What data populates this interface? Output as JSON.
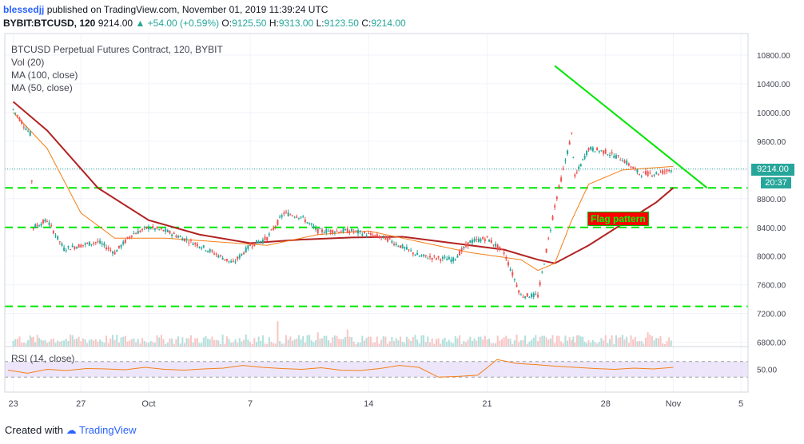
{
  "header": {
    "user": "blessedjj",
    "published": "published on TradingView.com, November 01, 2019 11:39:24 UTC",
    "symbol": "BYBIT:BTCUSD, 120",
    "last": "9214.00",
    "change": "+54.00 (+0.59%)",
    "open_label": "O:",
    "open": "9125.50",
    "high_label": "H:",
    "high": "9313.00",
    "low_label": "L:",
    "low": "9123.50",
    "close_label": "C:",
    "close": "9214.00"
  },
  "legend": {
    "title": "BTCUSD Perpetual Futures Contract, 120, BYBIT",
    "vol": "Vol (20)",
    "ma100": "MA (100, close)",
    "ma50": "MA (50, close)",
    "rsi": "RSI (14, close)"
  },
  "price_badge": {
    "price": "9214.00",
    "countdown": "20:37"
  },
  "annotation": {
    "label": "Flag pattern"
  },
  "footer": {
    "created_with": "Created with",
    "brand": "TradingView"
  },
  "colors": {
    "up": "#26a69a",
    "down": "#ef5350",
    "ma100": "#b22222",
    "ma50": "#f57f17",
    "support": "#00e600",
    "trend": "#00e600",
    "rsi": "#f57f17",
    "rsi_band": "#e1d5f7"
  },
  "chart_data": {
    "type": "line",
    "title": "BTCUSD Perpetual Futures Contract, 120, BYBIT",
    "y_axis": {
      "ticks": [
        10800,
        10400,
        10000,
        9600,
        9200,
        8800,
        8400,
        8000,
        7600,
        7200,
        6800
      ],
      "range": [
        6740,
        11100
      ]
    },
    "x_axis": {
      "ticks": [
        "23",
        "27",
        "Oct",
        "7",
        "14",
        "21",
        "28",
        "Nov",
        "5"
      ]
    },
    "price_series": [
      {
        "date": "2019-09-23",
        "price": 10040
      },
      {
        "date": "2019-09-24",
        "price": 9700
      },
      {
        "date": "2019-09-24",
        "price": 8400
      },
      {
        "date": "2019-09-25",
        "price": 8500
      },
      {
        "date": "2019-09-26",
        "price": 8100
      },
      {
        "date": "2019-09-27",
        "price": 8150
      },
      {
        "date": "2019-09-28",
        "price": 8200
      },
      {
        "date": "2019-09-29",
        "price": 8050
      },
      {
        "date": "2019-09-30",
        "price": 8300
      },
      {
        "date": "2019-10-01",
        "price": 8400
      },
      {
        "date": "2019-10-02",
        "price": 8350
      },
      {
        "date": "2019-10-04",
        "price": 8150
      },
      {
        "date": "2019-10-06",
        "price": 7900
      },
      {
        "date": "2019-10-07",
        "price": 8150
      },
      {
        "date": "2019-10-08",
        "price": 8250
      },
      {
        "date": "2019-10-09",
        "price": 8600
      },
      {
        "date": "2019-10-10",
        "price": 8550
      },
      {
        "date": "2019-10-11",
        "price": 8350
      },
      {
        "date": "2019-10-13",
        "price": 8350
      },
      {
        "date": "2019-10-15",
        "price": 8250
      },
      {
        "date": "2019-10-17",
        "price": 8000
      },
      {
        "date": "2019-10-19",
        "price": 7950
      },
      {
        "date": "2019-10-20",
        "price": 8200
      },
      {
        "date": "2019-10-21",
        "price": 8250
      },
      {
        "date": "2019-10-22",
        "price": 8050
      },
      {
        "date": "2019-10-23",
        "price": 7450
      },
      {
        "date": "2019-10-24",
        "price": 7450
      },
      {
        "date": "2019-10-25",
        "price": 8700
      },
      {
        "date": "2019-10-26",
        "price": 9700
      },
      {
        "date": "2019-10-26",
        "price": 9100
      },
      {
        "date": "2019-10-27",
        "price": 9500
      },
      {
        "date": "2019-10-28",
        "price": 9450
      },
      {
        "date": "2019-10-29",
        "price": 9350
      },
      {
        "date": "2019-10-30",
        "price": 9150
      },
      {
        "date": "2019-10-31",
        "price": 9150
      },
      {
        "date": "2019-11-01",
        "price": 9214
      }
    ],
    "ma100": [
      {
        "date": "2019-09-23",
        "price": 10150
      },
      {
        "date": "2019-09-25",
        "price": 9750
      },
      {
        "date": "2019-09-28",
        "price": 8950
      },
      {
        "date": "2019-10-01",
        "price": 8500
      },
      {
        "date": "2019-10-04",
        "price": 8300
      },
      {
        "date": "2019-10-07",
        "price": 8180
      },
      {
        "date": "2019-10-10",
        "price": 8230
      },
      {
        "date": "2019-10-13",
        "price": 8260
      },
      {
        "date": "2019-10-16",
        "price": 8270
      },
      {
        "date": "2019-10-19",
        "price": 8180
      },
      {
        "date": "2019-10-22",
        "price": 8090
      },
      {
        "date": "2019-10-24",
        "price": 7950
      },
      {
        "date": "2019-10-25",
        "price": 7900
      },
      {
        "date": "2019-10-27",
        "price": 8150
      },
      {
        "date": "2019-10-29",
        "price": 8450
      },
      {
        "date": "2019-10-31",
        "price": 8750
      },
      {
        "date": "2019-11-01",
        "price": 8950
      }
    ],
    "ma50": [
      {
        "date": "2019-09-23",
        "price": 10000
      },
      {
        "date": "2019-09-25",
        "price": 9500
      },
      {
        "date": "2019-09-27",
        "price": 8600
      },
      {
        "date": "2019-09-29",
        "price": 8250
      },
      {
        "date": "2019-10-02",
        "price": 8250
      },
      {
        "date": "2019-10-05",
        "price": 8200
      },
      {
        "date": "2019-10-08",
        "price": 8150
      },
      {
        "date": "2019-10-11",
        "price": 8300
      },
      {
        "date": "2019-10-14",
        "price": 8350
      },
      {
        "date": "2019-10-17",
        "price": 8200
      },
      {
        "date": "2019-10-20",
        "price": 8050
      },
      {
        "date": "2019-10-23",
        "price": 7950
      },
      {
        "date": "2019-10-24",
        "price": 7800
      },
      {
        "date": "2019-10-25",
        "price": 7900
      },
      {
        "date": "2019-10-26",
        "price": 8500
      },
      {
        "date": "2019-10-27",
        "price": 9000
      },
      {
        "date": "2019-10-29",
        "price": 9200
      },
      {
        "date": "2019-11-01",
        "price": 9250
      }
    ],
    "support_levels": [
      8950,
      8400,
      7300
    ],
    "trend_line": [
      {
        "date": "2019-10-25",
        "price": 10650
      },
      {
        "date": "2019-11-03",
        "price": 8950
      }
    ],
    "rsi": {
      "label": "RSI (14, close)",
      "ticks": [
        50.0
      ],
      "band": [
        30,
        70
      ],
      "values": [
        48,
        40,
        50,
        47,
        52,
        51,
        49,
        55,
        50,
        48,
        51,
        53,
        60,
        55,
        52,
        50,
        54,
        48,
        47,
        52,
        60,
        55,
        30,
        32,
        35,
        75,
        65,
        62,
        58,
        55,
        52,
        50,
        53,
        51,
        55
      ]
    }
  }
}
